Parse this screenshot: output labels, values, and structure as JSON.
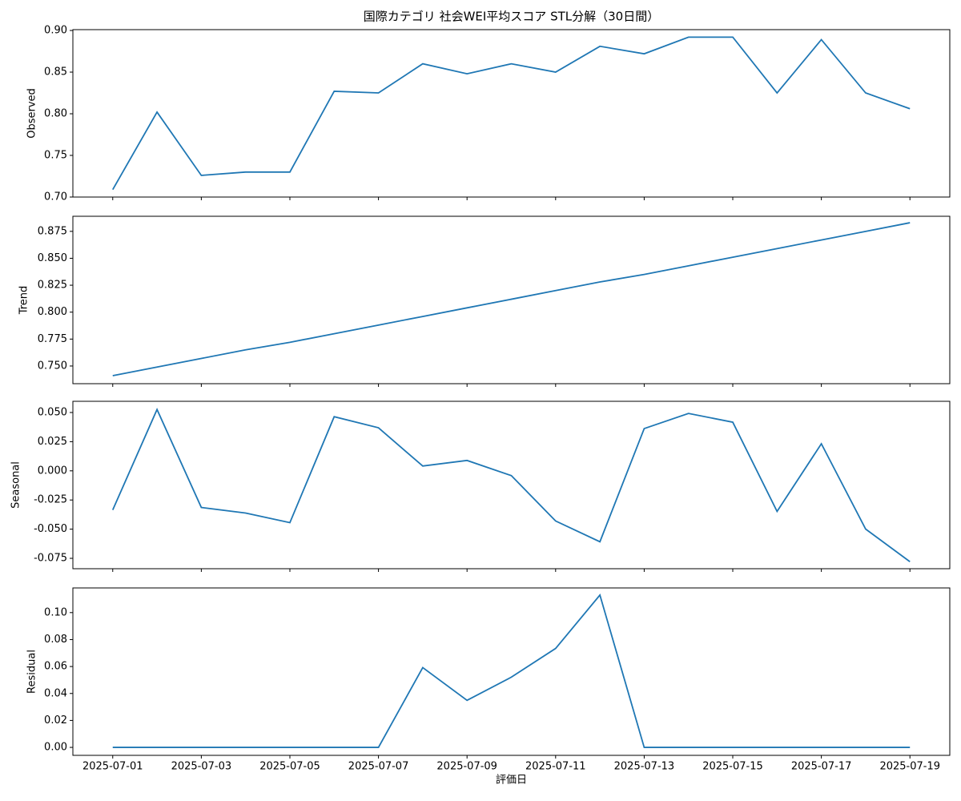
{
  "chart_data": [
    {
      "type": "line",
      "title": "国際カテゴリ 社会WEI平均スコア STL分解（30日間）",
      "ylabel": "Observed",
      "color": "#1f77b4",
      "x": [
        "2025-07-01",
        "2025-07-02",
        "2025-07-03",
        "2025-07-04",
        "2025-07-05",
        "2025-07-06",
        "2025-07-07",
        "2025-07-08",
        "2025-07-09",
        "2025-07-10",
        "2025-07-11",
        "2025-07-12",
        "2025-07-13",
        "2025-07-14",
        "2025-07-15",
        "2025-07-16",
        "2025-07-17",
        "2025-07-18",
        "2025-07-19"
      ],
      "xticks": [
        "2025-07-01",
        "2025-07-03",
        "2025-07-05",
        "2025-07-07",
        "2025-07-09",
        "2025-07-11",
        "2025-07-13",
        "2025-07-15",
        "2025-07-17",
        "2025-07-19"
      ],
      "values": [
        0.709,
        0.802,
        0.726,
        0.73,
        0.73,
        0.827,
        0.825,
        0.86,
        0.848,
        0.86,
        0.85,
        0.881,
        0.872,
        0.892,
        0.892,
        0.825,
        0.889,
        0.825,
        0.806
      ],
      "ylim": [
        0.7,
        0.901
      ],
      "yticks": [
        {
          "value": 0.7,
          "label": "0.70"
        },
        0.75,
        {
          "value": 0.8,
          "label": "0.80"
        },
        0.85,
        {
          "value": 0.9,
          "label": "0.90"
        }
      ]
    },
    {
      "type": "line",
      "ylabel": "Trend",
      "color": "#1f77b4",
      "x": [
        "2025-07-01",
        "2025-07-02",
        "2025-07-03",
        "2025-07-04",
        "2025-07-05",
        "2025-07-06",
        "2025-07-07",
        "2025-07-08",
        "2025-07-09",
        "2025-07-10",
        "2025-07-11",
        "2025-07-12",
        "2025-07-13",
        "2025-07-14",
        "2025-07-15",
        "2025-07-16",
        "2025-07-17",
        "2025-07-18",
        "2025-07-19"
      ],
      "xticks": [
        "2025-07-01",
        "2025-07-03",
        "2025-07-05",
        "2025-07-07",
        "2025-07-09",
        "2025-07-11",
        "2025-07-13",
        "2025-07-15",
        "2025-07-17",
        "2025-07-19"
      ],
      "values": [
        0.741,
        0.749,
        0.757,
        0.765,
        0.772,
        0.78,
        0.788,
        0.796,
        0.804,
        0.812,
        0.82,
        0.828,
        0.835,
        0.843,
        0.851,
        0.859,
        0.867,
        0.875,
        0.883
      ],
      "ylim": [
        0.7336,
        0.889
      ],
      "yticks": [
        {
          "value": 0.75,
          "label": "0.750"
        },
        0.775,
        {
          "value": 0.8,
          "label": "0.800"
        },
        0.825,
        {
          "value": 0.85,
          "label": "0.850"
        },
        0.875
      ]
    },
    {
      "type": "line",
      "ylabel": "Seasonal",
      "color": "#1f77b4",
      "x": [
        "2025-07-01",
        "2025-07-02",
        "2025-07-03",
        "2025-07-04",
        "2025-07-05",
        "2025-07-06",
        "2025-07-07",
        "2025-07-08",
        "2025-07-09",
        "2025-07-10",
        "2025-07-11",
        "2025-07-12",
        "2025-07-13",
        "2025-07-14",
        "2025-07-15",
        "2025-07-16",
        "2025-07-17",
        "2025-07-18",
        "2025-07-19"
      ],
      "xticks": [
        "2025-07-01",
        "2025-07-03",
        "2025-07-05",
        "2025-07-07",
        "2025-07-09",
        "2025-07-11",
        "2025-07-13",
        "2025-07-15",
        "2025-07-17",
        "2025-07-19"
      ],
      "values": [
        -0.0335,
        0.0526,
        -0.0314,
        -0.0362,
        -0.0444,
        0.0464,
        0.0369,
        0.0041,
        0.0089,
        -0.0041,
        -0.043,
        -0.0608,
        0.0362,
        0.0492,
        0.0417,
        -0.0348,
        0.0232,
        -0.0499,
        -0.0779
      ],
      "ylim": [
        -0.0839,
        0.0596
      ],
      "yticks": [
        -0.075,
        {
          "value": -0.05,
          "label": "-0.050"
        },
        -0.025,
        {
          "value": 0,
          "label": "0.000"
        },
        0.025,
        {
          "value": 0.05,
          "label": "0.050"
        }
      ]
    },
    {
      "type": "line",
      "ylabel": "Residual",
      "xlabel": "評価日",
      "color": "#1f77b4",
      "x": [
        "2025-07-01",
        "2025-07-02",
        "2025-07-03",
        "2025-07-04",
        "2025-07-05",
        "2025-07-06",
        "2025-07-07",
        "2025-07-08",
        "2025-07-09",
        "2025-07-10",
        "2025-07-11",
        "2025-07-12",
        "2025-07-13",
        "2025-07-14",
        "2025-07-15",
        "2025-07-16",
        "2025-07-17",
        "2025-07-18",
        "2025-07-19"
      ],
      "xticks": [
        "2025-07-01",
        "2025-07-03",
        "2025-07-05",
        "2025-07-07",
        "2025-07-09",
        "2025-07-11",
        "2025-07-13",
        "2025-07-15",
        "2025-07-17",
        "2025-07-19"
      ],
      "values": [
        0,
        0,
        0,
        0,
        0,
        0,
        0,
        0.0592,
        0.0349,
        0.0521,
        0.0734,
        0.113,
        0,
        0,
        0,
        0,
        0,
        0,
        0
      ],
      "ylim": [
        -0.0059,
        0.1183
      ],
      "yticks": [
        {
          "value": 0,
          "label": "0.00"
        },
        0.02,
        0.04,
        0.06,
        0.08,
        {
          "value": 0.1,
          "label": "0.10"
        }
      ]
    }
  ]
}
